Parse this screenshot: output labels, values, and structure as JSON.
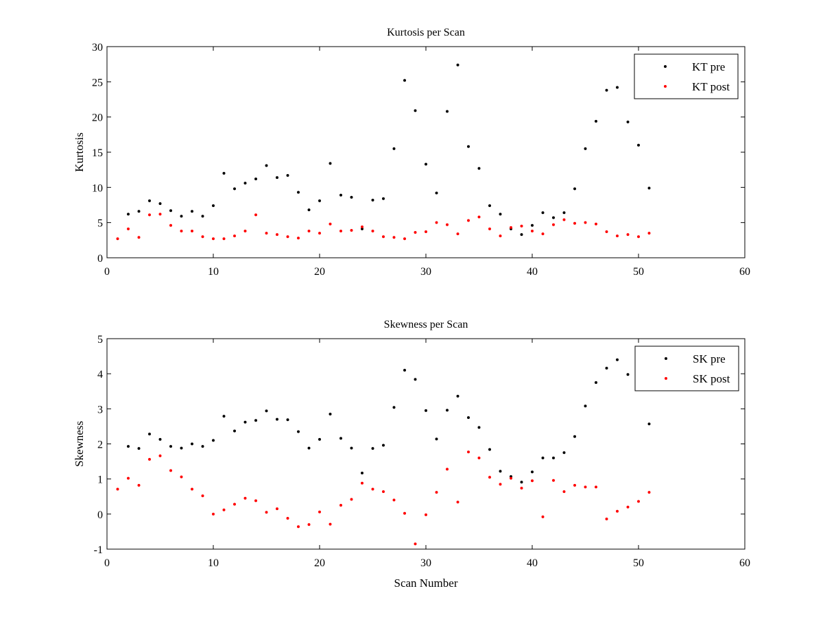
{
  "chart_data": [
    {
      "type": "scatter",
      "title": "Kurtosis per Scan",
      "xlabel": "",
      "ylabel": "Kurtosis",
      "xlim": [
        0,
        60
      ],
      "ylim": [
        0,
        30
      ],
      "xticks": [
        0,
        10,
        20,
        30,
        40,
        50,
        60
      ],
      "yticks": [
        0,
        5,
        10,
        15,
        20,
        25,
        30
      ],
      "grid": false,
      "legend_position": "top-right",
      "series": [
        {
          "name": "KT pre",
          "color": "#000000",
          "x": [
            2,
            3,
            4,
            5,
            6,
            7,
            8,
            9,
            10,
            11,
            12,
            13,
            14,
            15,
            16,
            17,
            18,
            19,
            20,
            21,
            22,
            23,
            24,
            25,
            26,
            27,
            28,
            29,
            30,
            31,
            32,
            33,
            34,
            35,
            36,
            37,
            38,
            39,
            40,
            41,
            42,
            43,
            44,
            45,
            46,
            47,
            48,
            49,
            50,
            51
          ],
          "y": [
            6.2,
            6.6,
            8.1,
            7.7,
            6.7,
            5.9,
            6.6,
            5.9,
            7.4,
            12.0,
            9.8,
            10.6,
            11.2,
            13.1,
            11.4,
            11.7,
            9.3,
            6.8,
            8.1,
            13.4,
            8.9,
            8.6,
            4.1,
            8.2,
            8.4,
            15.5,
            25.2,
            20.9,
            13.3,
            9.2,
            20.8,
            27.4,
            15.8,
            12.7,
            7.4,
            6.2,
            4.1,
            3.3,
            4.6,
            6.4,
            5.7,
            6.4,
            9.8,
            15.5,
            19.4,
            23.8,
            24.2,
            19.3,
            16.0,
            9.9
          ]
        },
        {
          "name": "KT post",
          "color": "#ff0000",
          "x": [
            1,
            2,
            3,
            4,
            5,
            6,
            7,
            8,
            9,
            10,
            11,
            12,
            13,
            14,
            15,
            16,
            17,
            18,
            19,
            20,
            21,
            22,
            23,
            24,
            25,
            26,
            27,
            28,
            29,
            30,
            31,
            32,
            33,
            34,
            35,
            36,
            37,
            38,
            39,
            40,
            41,
            42,
            43,
            44,
            45,
            46,
            47,
            48,
            49,
            50,
            51
          ],
          "y": [
            2.7,
            4.1,
            2.9,
            6.1,
            6.2,
            4.6,
            3.8,
            3.8,
            3.0,
            2.7,
            2.7,
            3.1,
            3.8,
            6.1,
            3.5,
            3.3,
            3.0,
            2.8,
            3.8,
            3.5,
            4.8,
            3.8,
            3.9,
            4.4,
            3.8,
            3.0,
            2.9,
            2.7,
            3.6,
            3.7,
            5.0,
            4.7,
            3.4,
            5.3,
            5.8,
            4.1,
            3.1,
            4.3,
            4.5,
            3.8,
            3.4,
            4.7,
            5.4,
            4.9,
            5.0,
            4.8,
            3.7,
            3.1,
            3.3,
            3.0,
            3.5
          ]
        }
      ]
    },
    {
      "type": "scatter",
      "title": "Skewness per Scan",
      "xlabel": "Scan Number",
      "ylabel": "Skewness",
      "xlim": [
        0,
        60
      ],
      "ylim": [
        -1,
        5
      ],
      "xticks": [
        0,
        10,
        20,
        30,
        40,
        50,
        60
      ],
      "yticks": [
        -1,
        0,
        1,
        2,
        3,
        4,
        5
      ],
      "grid": false,
      "legend_position": "top-right",
      "series": [
        {
          "name": "SK pre",
          "color": "#000000",
          "x": [
            2,
            3,
            4,
            5,
            6,
            7,
            8,
            9,
            10,
            11,
            12,
            13,
            14,
            15,
            16,
            17,
            18,
            19,
            20,
            21,
            22,
            23,
            24,
            25,
            26,
            27,
            28,
            29,
            30,
            31,
            32,
            33,
            34,
            35,
            36,
            37,
            38,
            39,
            40,
            41,
            42,
            43,
            44,
            45,
            46,
            47,
            48,
            49,
            50,
            51
          ],
          "y": [
            1.93,
            1.87,
            2.28,
            2.13,
            1.93,
            1.88,
            2.0,
            1.93,
            2.1,
            2.79,
            2.37,
            2.62,
            2.67,
            2.94,
            2.7,
            2.69,
            2.35,
            1.88,
            2.13,
            2.85,
            2.16,
            1.88,
            1.17,
            1.87,
            1.96,
            3.04,
            4.1,
            3.84,
            2.95,
            2.14,
            2.96,
            3.36,
            2.75,
            2.47,
            1.84,
            1.22,
            1.07,
            0.91,
            1.2,
            1.6,
            1.6,
            1.75,
            2.21,
            3.08,
            3.75,
            4.16,
            4.4,
            3.98,
            3.6,
            2.57
          ]
        },
        {
          "name": "SK post",
          "color": "#ff0000",
          "x": [
            1,
            2,
            3,
            4,
            5,
            6,
            7,
            8,
            9,
            10,
            11,
            12,
            13,
            14,
            15,
            16,
            17,
            18,
            19,
            20,
            21,
            22,
            23,
            24,
            25,
            26,
            27,
            28,
            29,
            30,
            31,
            32,
            33,
            34,
            35,
            36,
            37,
            38,
            39,
            40,
            41,
            42,
            43,
            44,
            45,
            46,
            47,
            48,
            49,
            50,
            51
          ],
          "y": [
            0.71,
            1.02,
            0.82,
            1.56,
            1.66,
            1.24,
            1.06,
            0.71,
            0.52,
            0.0,
            0.12,
            0.28,
            0.45,
            0.38,
            0.05,
            0.15,
            -0.12,
            -0.36,
            -0.3,
            0.06,
            -0.29,
            0.25,
            0.42,
            0.88,
            0.71,
            0.64,
            0.4,
            0.02,
            -0.85,
            -0.02,
            0.62,
            1.28,
            0.34,
            1.77,
            1.6,
            1.05,
            0.85,
            1.02,
            0.74,
            0.95,
            -0.08,
            0.96,
            0.64,
            0.82,
            0.77,
            0.77,
            -0.14,
            0.08,
            0.2,
            0.36,
            0.62
          ]
        }
      ]
    }
  ]
}
